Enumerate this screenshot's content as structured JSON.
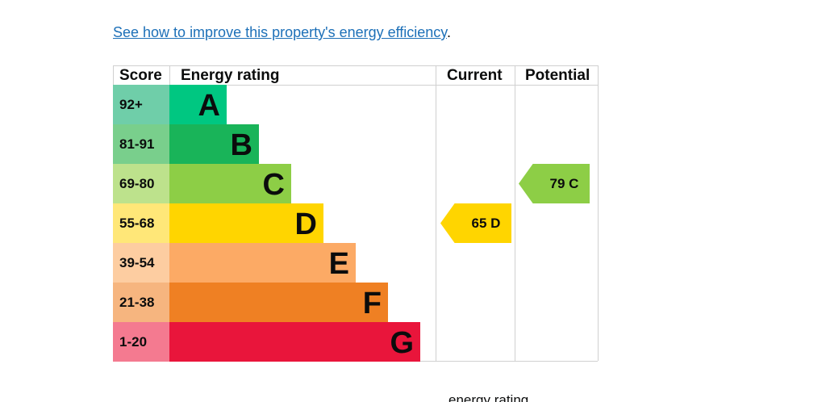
{
  "link": {
    "text": "See how to improve this property's energy efficiency",
    "suffix": "."
  },
  "footer": {
    "text": "energy rating"
  },
  "chart_data": {
    "type": "bar",
    "headers": {
      "score": "Score",
      "rating": "Energy rating",
      "current": "Current",
      "potential": "Potential"
    },
    "bands": [
      {
        "score": "92+",
        "letter": "A",
        "color": "#00c781",
        "score_color": "#6fcea9",
        "width_fraction": 0.16
      },
      {
        "score": "81-91",
        "letter": "B",
        "color": "#19b459",
        "score_color": "#79cf8c",
        "width_fraction": 0.25
      },
      {
        "score": "69-80",
        "letter": "C",
        "color": "#8dce46",
        "score_color": "#bde28c",
        "width_fraction": 0.34
      },
      {
        "score": "55-68",
        "letter": "D",
        "color": "#ffd500",
        "score_color": "#ffe778",
        "width_fraction": 0.43
      },
      {
        "score": "39-54",
        "letter": "E",
        "color": "#fcaa65",
        "score_color": "#fdcda1",
        "width_fraction": 0.52
      },
      {
        "score": "21-38",
        "letter": "F",
        "color": "#ef8023",
        "score_color": "#f6b57f",
        "width_fraction": 0.61
      },
      {
        "score": "1-20",
        "letter": "G",
        "color": "#e9153b",
        "score_color": "#f47a90",
        "width_fraction": 0.7
      }
    ],
    "current": {
      "value": 65,
      "letter": "D",
      "label": "65 D",
      "color": "#ffd500"
    },
    "potential": {
      "value": 79,
      "letter": "C",
      "label": "79 C",
      "color": "#8dce46"
    }
  }
}
